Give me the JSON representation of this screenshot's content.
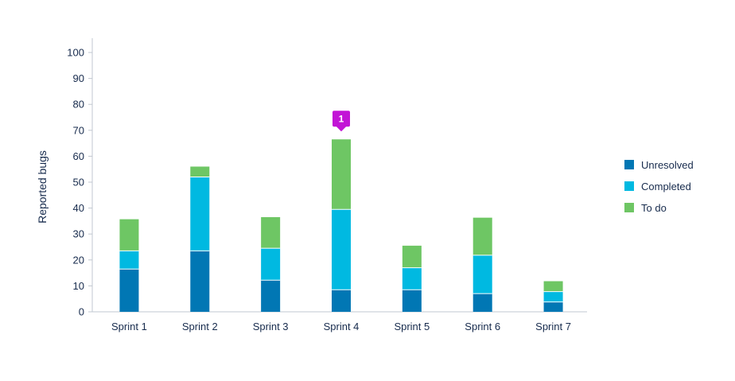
{
  "chart_data": {
    "type": "bar",
    "stacked": true,
    "title": "",
    "xlabel": "",
    "ylabel": "Reported bugs",
    "ylim": [
      0,
      100
    ],
    "yticks": [
      0,
      10,
      20,
      30,
      40,
      50,
      60,
      70,
      80,
      90,
      100
    ],
    "categories": [
      "Sprint 1",
      "Sprint 2",
      "Sprint 3",
      "Sprint 4",
      "Sprint 5",
      "Sprint 6",
      "Sprint 7"
    ],
    "series": [
      {
        "name": "Unresolved",
        "color": "#0177b4",
        "values": [
          16.5,
          23.5,
          12.2,
          8.5,
          8.5,
          7,
          3.8
        ]
      },
      {
        "name": "Completed",
        "color": "#00b9e1",
        "values": [
          7,
          28.5,
          12.3,
          31,
          8.5,
          14.8,
          4
        ]
      },
      {
        "name": "To do",
        "color": "#6ec664",
        "values": [
          12.2,
          4,
          12,
          27,
          8.5,
          14.5,
          4
        ]
      }
    ],
    "grid": false,
    "legend_position": "right",
    "annotations": [
      {
        "label": "1",
        "category": "Sprint 4",
        "value": 66.5,
        "color": "#c214d6"
      }
    ]
  }
}
